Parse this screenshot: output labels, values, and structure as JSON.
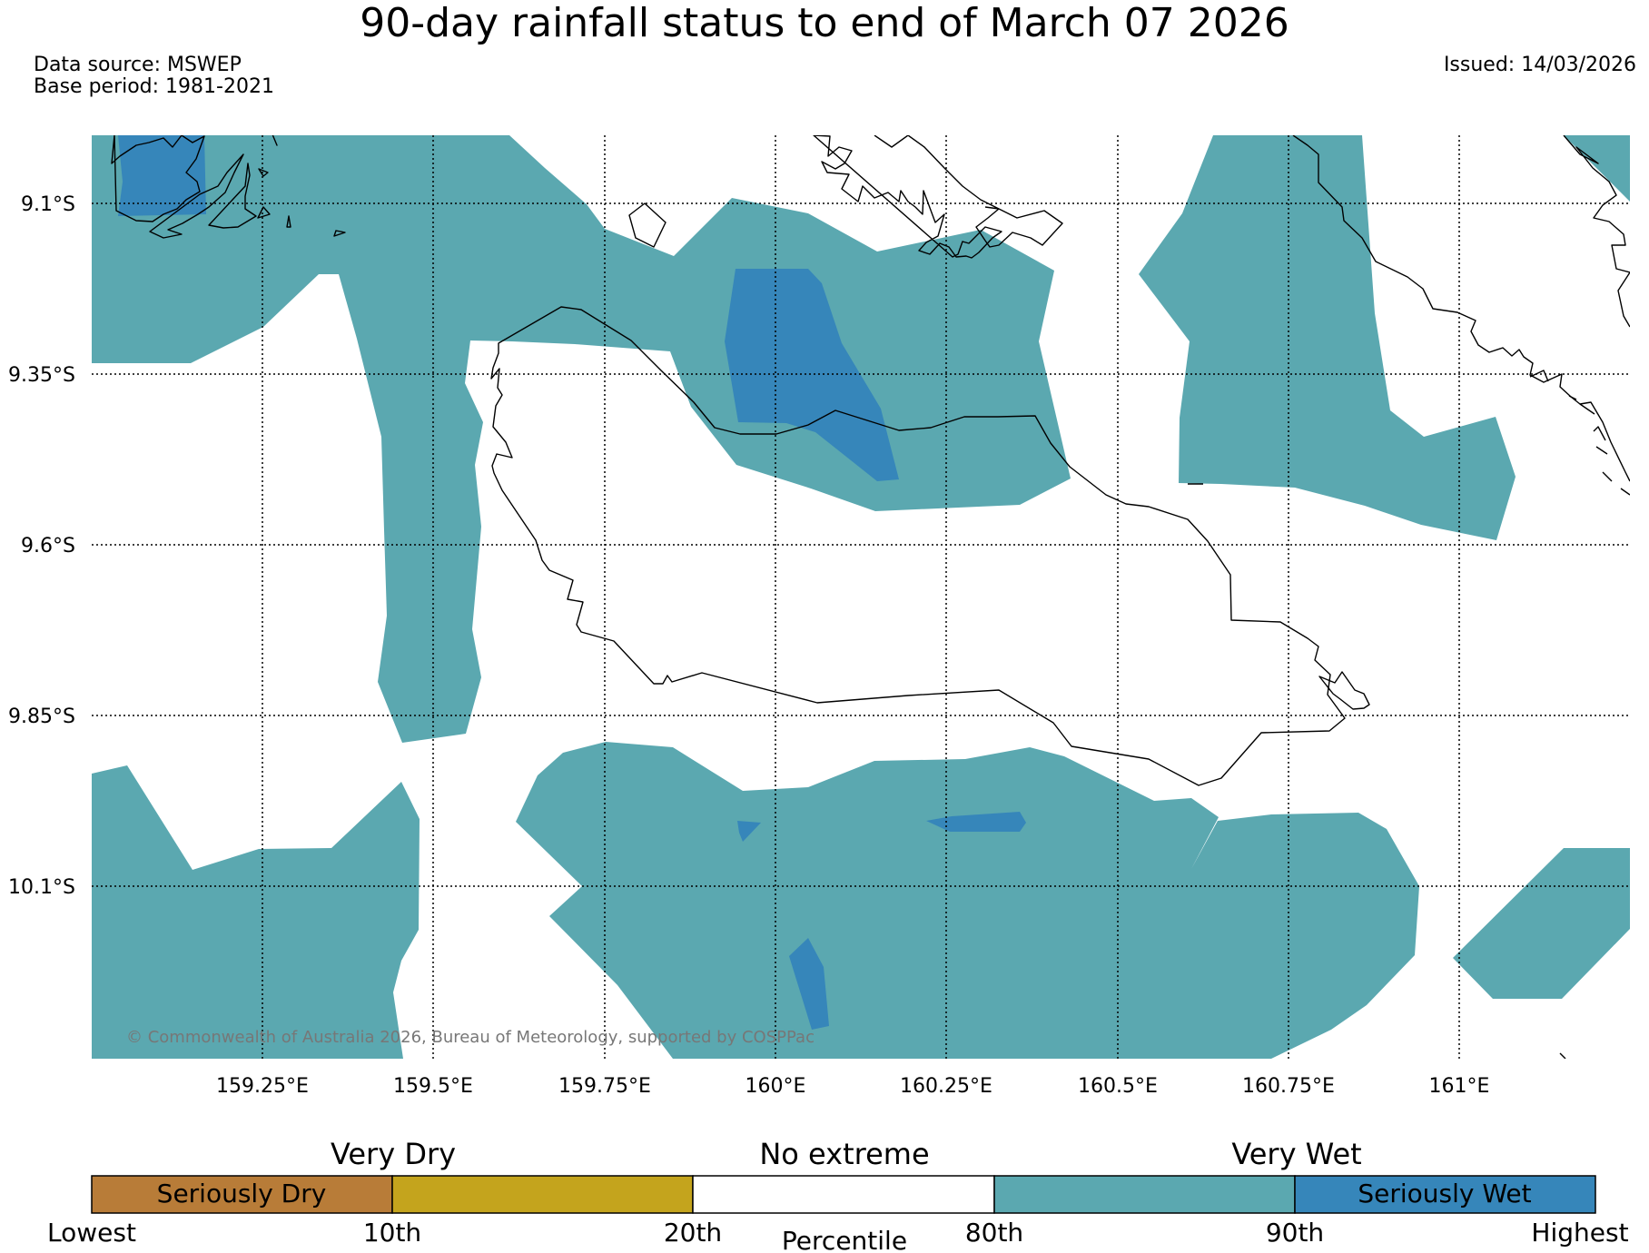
{
  "header": {
    "title": "90-day rainfall status to end of March 07 2026",
    "data_source": "Data source: MSWEP",
    "base_period": "Base period: 1981-2021",
    "issued": "Issued: 14/03/2026"
  },
  "map": {
    "lat_labels": [
      "9.1°S",
      "9.35°S",
      "9.6°S",
      "9.85°S",
      "10.1°S"
    ],
    "lon_labels": [
      "159.25°E",
      "159.5°E",
      "159.75°E",
      "160°E",
      "160.25°E",
      "160.5°E",
      "160.75°E",
      "161°E"
    ],
    "copyright": "© Commonwealth of Australia 2026, Bureau of Meteorology, supported by COSPPac"
  },
  "legend": {
    "groups": [
      "Very Dry",
      "No extreme",
      "Very Wet"
    ],
    "boxes": [
      {
        "label": "Seriously Dry",
        "color": "#b87c38"
      },
      {
        "label": "",
        "color": "#c4a41d"
      },
      {
        "label": "",
        "color": "#ffffff"
      },
      {
        "label": "",
        "color": "#5ba8b0"
      },
      {
        "label": "Seriously Wet",
        "color": "#3686ba"
      }
    ],
    "ticks": [
      "Lowest",
      "10th",
      "20th",
      "80th",
      "90th",
      "Highest"
    ],
    "axis_label": "Percentile"
  },
  "colors": {
    "very_wet": "#5ba8b0",
    "seriously_wet": "#3686ba"
  }
}
